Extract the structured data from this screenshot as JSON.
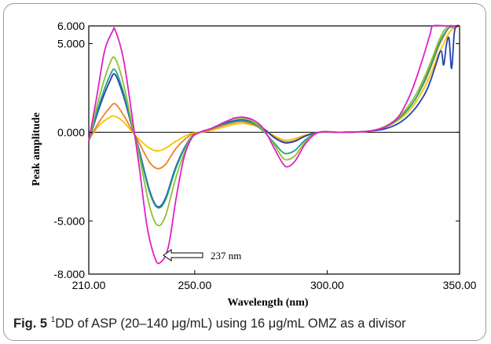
{
  "chart_data": {
    "type": "line",
    "xlabel": "Wavelength (nm)",
    "ylabel": "Peak amplitude",
    "xlim": [
      210,
      350
    ],
    "ylim": [
      -8,
      6
    ],
    "xticks": [
      "210.00",
      "250.00",
      "300.00",
      "350.00"
    ],
    "yticks": [
      "6.000",
      "5.000",
      "0.000",
      "-5.000",
      "-8.000"
    ],
    "annotation": "237 nm",
    "series": [
      {
        "color": "#f5c400",
        "amp": 0.55,
        "points": [
          [
            210,
            -0.4
          ],
          [
            214,
            0.4
          ],
          [
            218,
            0.85
          ],
          [
            220,
            0.9
          ],
          [
            223,
            0.6
          ],
          [
            226,
            0.1
          ],
          [
            229,
            -0.4
          ],
          [
            233,
            -0.9
          ],
          [
            236,
            -1.05
          ],
          [
            239,
            -0.9
          ],
          [
            243,
            -0.5
          ],
          [
            248,
            -0.1
          ],
          [
            252,
            0.0
          ],
          [
            256,
            0.1
          ],
          [
            261,
            0.3
          ],
          [
            265,
            0.45
          ],
          [
            268,
            0.5
          ],
          [
            272,
            0.4
          ],
          [
            276,
            0.15
          ],
          [
            280,
            -0.2
          ],
          [
            283,
            -0.4
          ],
          [
            285,
            -0.45
          ],
          [
            288,
            -0.35
          ],
          [
            292,
            -0.15
          ],
          [
            297,
            0.0
          ],
          [
            305,
            0.0
          ],
          [
            315,
            0.05
          ],
          [
            322,
            0.3
          ],
          [
            328,
            0.8
          ],
          [
            333,
            1.6
          ],
          [
            337,
            2.6
          ],
          [
            340,
            3.6
          ],
          [
            342,
            4.4
          ],
          [
            344,
            5.0
          ],
          [
            346,
            5.6
          ],
          [
            348,
            5.9
          ],
          [
            350,
            6.0
          ]
        ]
      },
      {
        "color": "#f08020",
        "amp": 0.7,
        "points": [
          [
            210,
            -0.45
          ],
          [
            214,
            0.6
          ],
          [
            218,
            1.4
          ],
          [
            220,
            1.6
          ],
          [
            223,
            1.0
          ],
          [
            226,
            0.2
          ],
          [
            229,
            -0.6
          ],
          [
            233,
            -1.7
          ],
          [
            236,
            -2.05
          ],
          [
            239,
            -1.8
          ],
          [
            243,
            -0.9
          ],
          [
            248,
            -0.2
          ],
          [
            252,
            0.0
          ],
          [
            256,
            0.15
          ],
          [
            261,
            0.4
          ],
          [
            265,
            0.55
          ],
          [
            268,
            0.6
          ],
          [
            272,
            0.45
          ],
          [
            276,
            0.2
          ],
          [
            280,
            -0.25
          ],
          [
            283,
            -0.5
          ],
          [
            285,
            -0.55
          ],
          [
            288,
            -0.45
          ],
          [
            292,
            -0.2
          ],
          [
            297,
            0.0
          ],
          [
            305,
            0.0
          ],
          [
            315,
            0.05
          ],
          [
            322,
            0.3
          ],
          [
            328,
            0.9
          ],
          [
            333,
            1.8
          ],
          [
            337,
            2.9
          ],
          [
            340,
            4.0
          ],
          [
            342,
            4.8
          ],
          [
            344,
            5.4
          ],
          [
            346,
            5.9
          ],
          [
            348,
            5.9
          ],
          [
            350,
            6.0
          ]
        ]
      },
      {
        "color": "#2040b0",
        "amp": 1.0,
        "points": [
          [
            210,
            -0.5
          ],
          [
            214,
            1.4
          ],
          [
            218,
            2.9
          ],
          [
            220,
            3.25
          ],
          [
            223,
            2.1
          ],
          [
            226,
            0.5
          ],
          [
            229,
            -1.0
          ],
          [
            233,
            -3.3
          ],
          [
            236,
            -4.2
          ],
          [
            239,
            -3.7
          ],
          [
            243,
            -1.9
          ],
          [
            248,
            -0.4
          ],
          [
            252,
            0.0
          ],
          [
            256,
            0.2
          ],
          [
            261,
            0.5
          ],
          [
            265,
            0.65
          ],
          [
            268,
            0.7
          ],
          [
            272,
            0.55
          ],
          [
            276,
            0.2
          ],
          [
            280,
            -0.3
          ],
          [
            283,
            -0.55
          ],
          [
            285,
            -0.6
          ],
          [
            288,
            -0.5
          ],
          [
            292,
            -0.2
          ],
          [
            297,
            0.0
          ],
          [
            305,
            0.0
          ],
          [
            315,
            0.05
          ],
          [
            322,
            0.2
          ],
          [
            328,
            0.6
          ],
          [
            333,
            1.3
          ],
          [
            337,
            2.2
          ],
          [
            339,
            2.9
          ],
          [
            341,
            3.8
          ],
          [
            343,
            4.6
          ],
          [
            344,
            3.8
          ],
          [
            345,
            4.9
          ],
          [
            346,
            5.3
          ],
          [
            347,
            3.6
          ],
          [
            348,
            5.6
          ],
          [
            349,
            6.0
          ],
          [
            350,
            6.0
          ]
        ]
      },
      {
        "color": "#20a090",
        "amp": 1.1,
        "points": [
          [
            210,
            -0.5
          ],
          [
            214,
            1.6
          ],
          [
            218,
            3.2
          ],
          [
            220,
            3.5
          ],
          [
            223,
            2.3
          ],
          [
            226,
            0.6
          ],
          [
            229,
            -1.1
          ],
          [
            233,
            -3.4
          ],
          [
            236,
            -4.25
          ],
          [
            239,
            -3.8
          ],
          [
            243,
            -2.0
          ],
          [
            248,
            -0.4
          ],
          [
            252,
            0.0
          ],
          [
            256,
            0.2
          ],
          [
            261,
            0.45
          ],
          [
            265,
            0.6
          ],
          [
            268,
            0.65
          ],
          [
            272,
            0.5
          ],
          [
            276,
            0.05
          ],
          [
            280,
            -0.6
          ],
          [
            283,
            -1.1
          ],
          [
            285,
            -1.2
          ],
          [
            288,
            -1.0
          ],
          [
            292,
            -0.4
          ],
          [
            297,
            0.0
          ],
          [
            305,
            0.0
          ],
          [
            315,
            0.05
          ],
          [
            322,
            0.3
          ],
          [
            328,
            0.9
          ],
          [
            333,
            1.8
          ],
          [
            337,
            3.0
          ],
          [
            340,
            4.1
          ],
          [
            342,
            4.9
          ],
          [
            344,
            5.5
          ],
          [
            346,
            5.9
          ],
          [
            348,
            6.0
          ],
          [
            350,
            6.0
          ]
        ]
      },
      {
        "color": "#90c030",
        "amp": 1.3,
        "points": [
          [
            210,
            -0.5
          ],
          [
            214,
            2.0
          ],
          [
            218,
            3.9
          ],
          [
            220,
            4.15
          ],
          [
            223,
            2.8
          ],
          [
            226,
            0.7
          ],
          [
            229,
            -1.3
          ],
          [
            233,
            -4.2
          ],
          [
            236,
            -5.25
          ],
          [
            239,
            -4.7
          ],
          [
            243,
            -2.5
          ],
          [
            248,
            -0.5
          ],
          [
            252,
            0.0
          ],
          [
            256,
            0.2
          ],
          [
            261,
            0.55
          ],
          [
            265,
            0.75
          ],
          [
            268,
            0.8
          ],
          [
            272,
            0.6
          ],
          [
            276,
            0.1
          ],
          [
            280,
            -0.7
          ],
          [
            283,
            -1.4
          ],
          [
            285,
            -1.55
          ],
          [
            288,
            -1.3
          ],
          [
            292,
            -0.5
          ],
          [
            297,
            0.0
          ],
          [
            305,
            0.0
          ],
          [
            315,
            0.05
          ],
          [
            322,
            0.35
          ],
          [
            328,
            1.0
          ],
          [
            333,
            2.0
          ],
          [
            337,
            3.2
          ],
          [
            340,
            4.3
          ],
          [
            342,
            5.1
          ],
          [
            344,
            5.7
          ],
          [
            346,
            6.0
          ],
          [
            348,
            6.0
          ],
          [
            350,
            6.0
          ]
        ]
      },
      {
        "color": "#e020c8",
        "amp": 1.7,
        "points": [
          [
            210,
            -0.5
          ],
          [
            213,
            2.0
          ],
          [
            216,
            4.6
          ],
          [
            219,
            5.7
          ],
          [
            220,
            5.75
          ],
          [
            223,
            4.2
          ],
          [
            226,
            1.3
          ],
          [
            229,
            -1.9
          ],
          [
            232,
            -5.3
          ],
          [
            235,
            -7.1
          ],
          [
            237,
            -7.35
          ],
          [
            240,
            -6.5
          ],
          [
            243,
            -3.7
          ],
          [
            246,
            -1.4
          ],
          [
            249,
            -0.3
          ],
          [
            252,
            0.0
          ],
          [
            256,
            0.2
          ],
          [
            261,
            0.55
          ],
          [
            265,
            0.8
          ],
          [
            268,
            0.85
          ],
          [
            272,
            0.7
          ],
          [
            276,
            0.2
          ],
          [
            280,
            -0.9
          ],
          [
            283,
            -1.7
          ],
          [
            285,
            -1.95
          ],
          [
            288,
            -1.6
          ],
          [
            292,
            -0.6
          ],
          [
            297,
            0.0
          ],
          [
            305,
            0.0
          ],
          [
            315,
            0.05
          ],
          [
            322,
            0.3
          ],
          [
            327,
            0.9
          ],
          [
            331,
            2.0
          ],
          [
            334,
            3.2
          ],
          [
            337,
            4.6
          ],
          [
            339,
            5.6
          ],
          [
            340,
            6.0
          ],
          [
            345,
            6.0
          ],
          [
            350,
            6.0
          ]
        ]
      }
    ]
  },
  "caption": {
    "fig_label": "Fig. 5",
    "superscript": "1",
    "text": "DD of ASP (20–140 μg/mL) using 16 μg/mL OMZ as a divisor"
  }
}
